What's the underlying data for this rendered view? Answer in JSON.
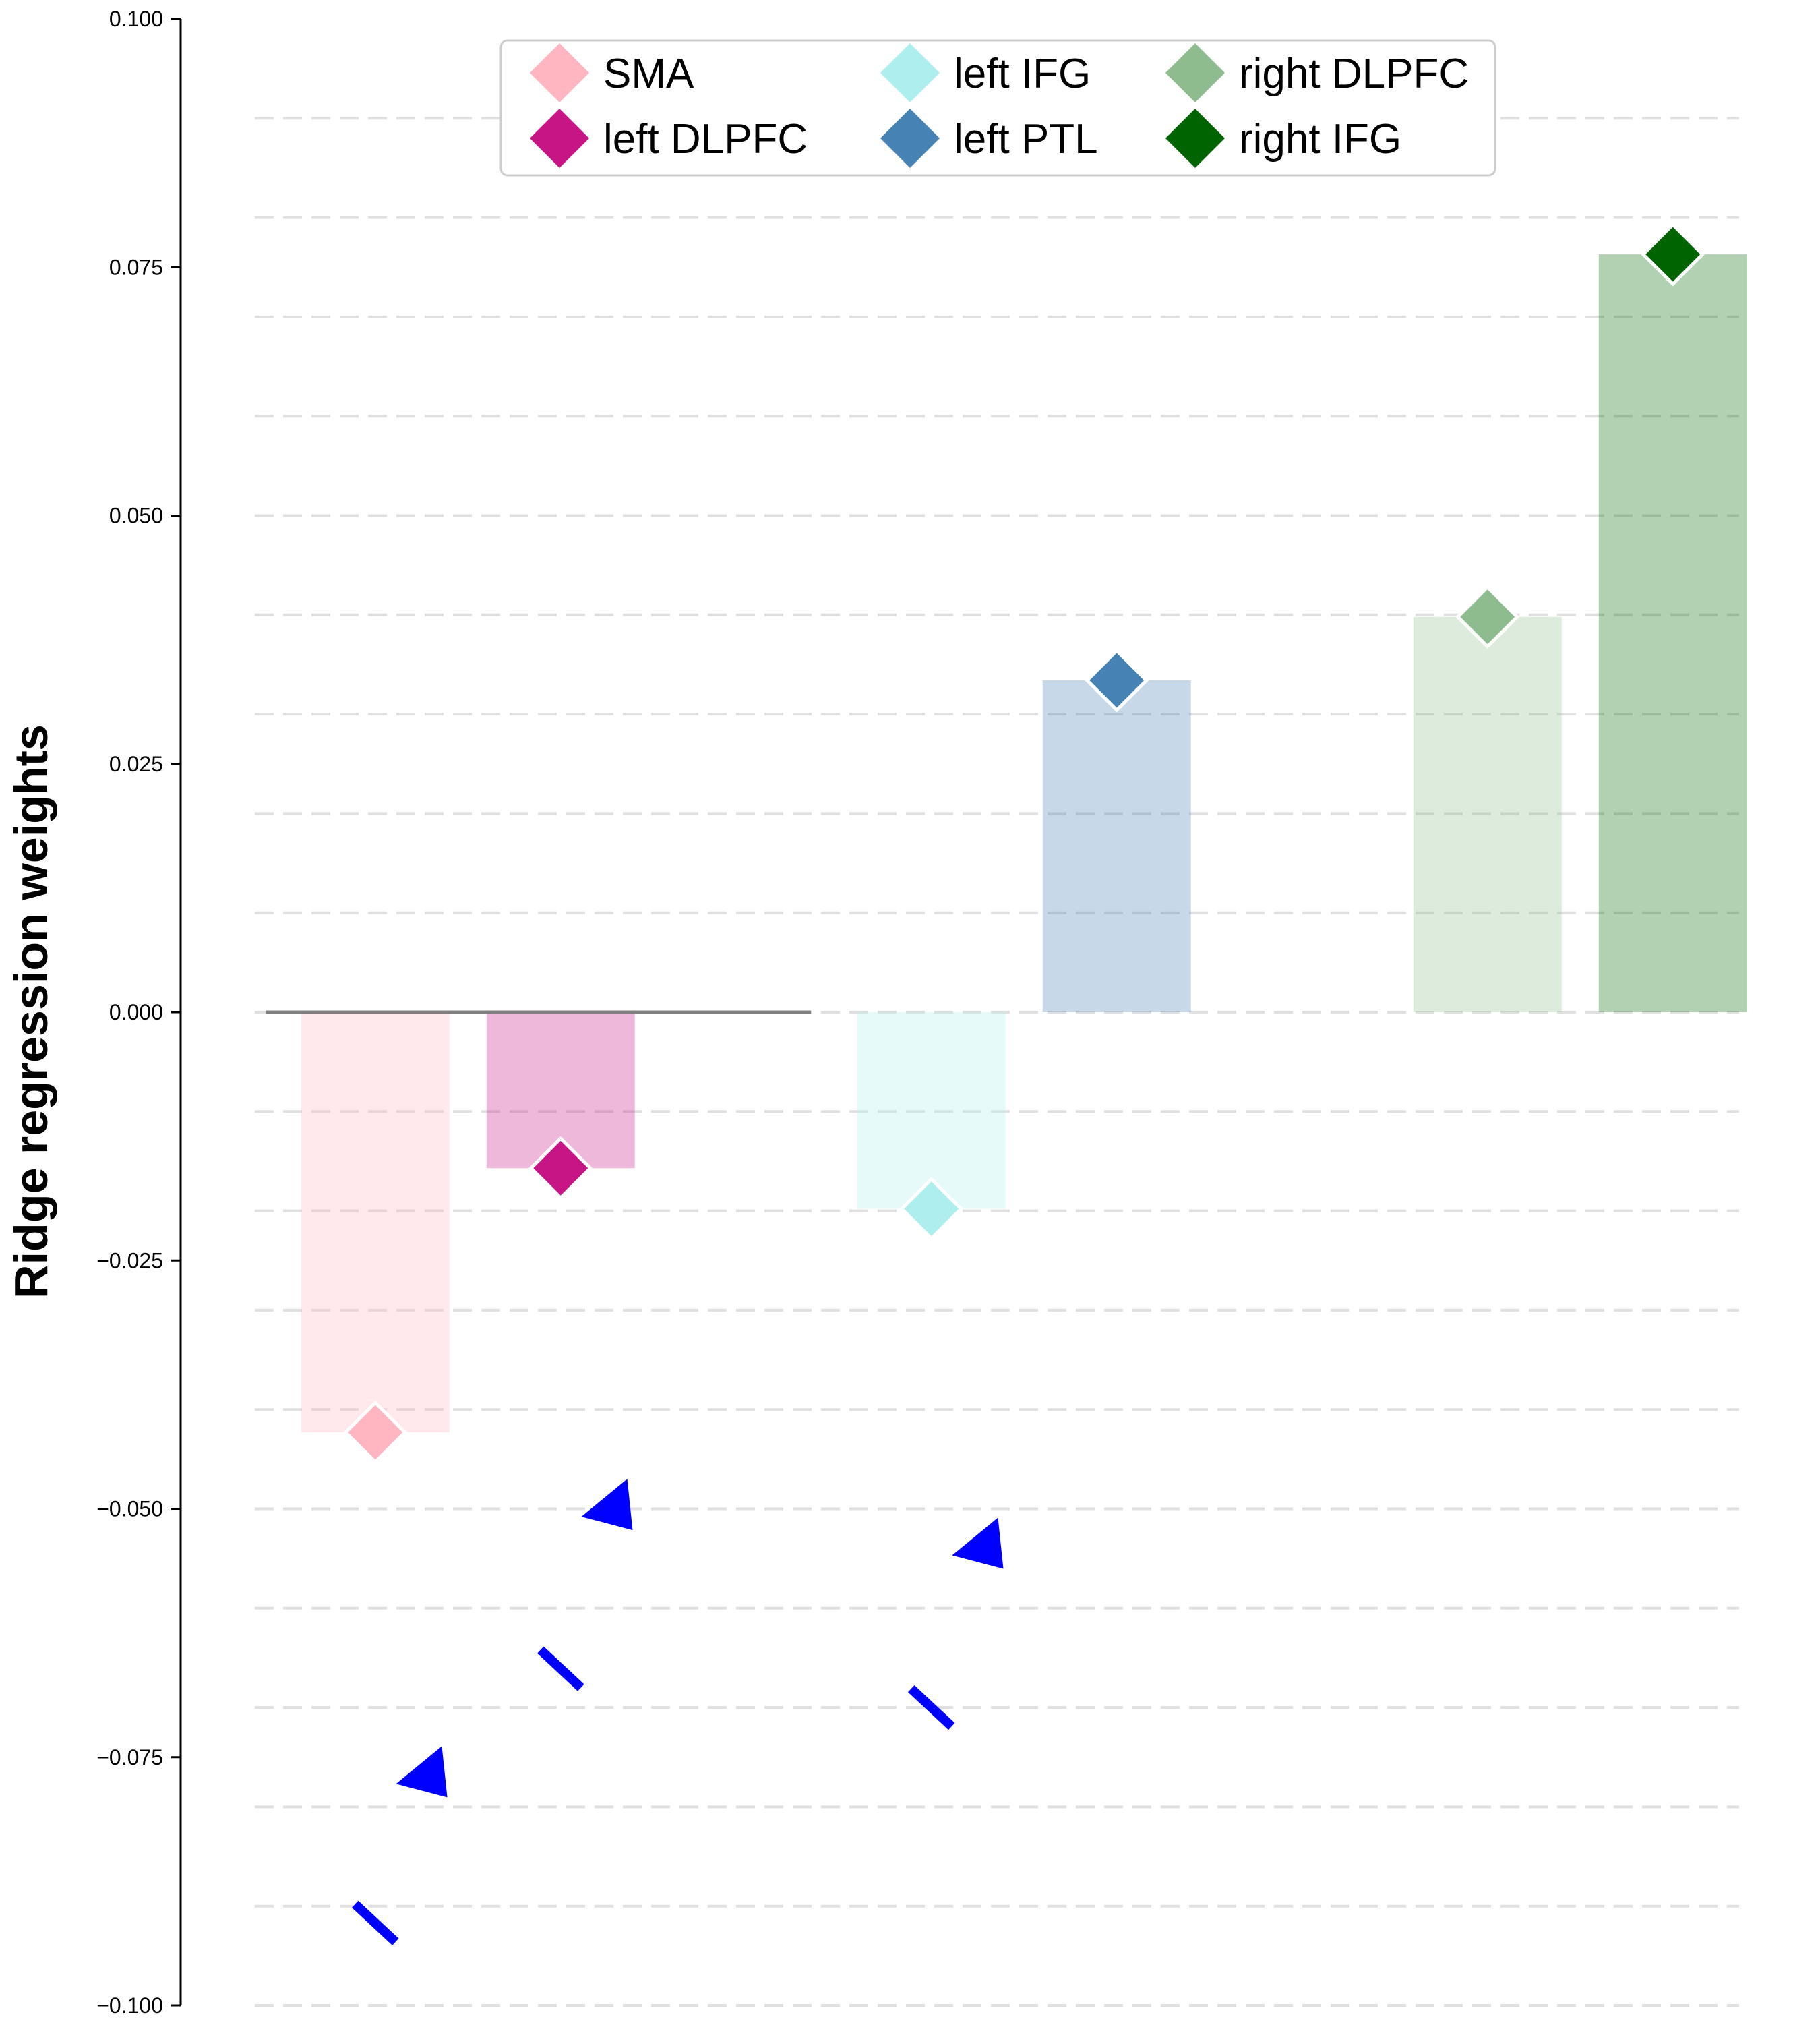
{
  "chart_data": {
    "type": "bar",
    "ylabel": "Ridge regression weights",
    "ylim": [
      -0.1,
      0.1
    ],
    "yticks": [
      "0.100",
      "0.075",
      "0.050",
      "0.025",
      "0.000",
      "−0.025",
      "−0.050",
      "−0.075",
      "−0.100"
    ],
    "grid": "horizontal dashed",
    "legend_position": "top-center",
    "categories": [
      "SMA",
      "left DLPFC",
      "left IFG",
      "left PTL",
      "right DLPFC",
      "right IFG"
    ],
    "values": [
      -0.0423,
      -0.0157,
      -0.0198,
      0.0334,
      0.0398,
      0.0763
    ],
    "colors": [
      "#ffb6c1",
      "#c71585",
      "#afeeee",
      "#4682b4",
      "#8fbc8f",
      "#006400"
    ],
    "x_positions": [
      0.65,
      1.65,
      3.65,
      4.65,
      6.65,
      7.65
    ],
    "reference_line": {
      "y": 0.0,
      "x_start": 0.06,
      "x_end": 3.0
    },
    "triangle_markers": [
      {
        "x": 0.9,
        "y": -0.0766
      },
      {
        "x": 1.9,
        "y": -0.0497
      },
      {
        "x": 3.9,
        "y": -0.0536
      }
    ],
    "dash_markers": [
      {
        "x": 0.65,
        "y": -0.0917
      },
      {
        "x": 1.65,
        "y": -0.0661
      },
      {
        "x": 3.65,
        "y": -0.07
      }
    ],
    "marker_color": "#0000ff",
    "legend_entries": [
      "SMA",
      "left IFG",
      "right DLPFC",
      "left DLPFC",
      "left PTL",
      "right IFG"
    ]
  }
}
